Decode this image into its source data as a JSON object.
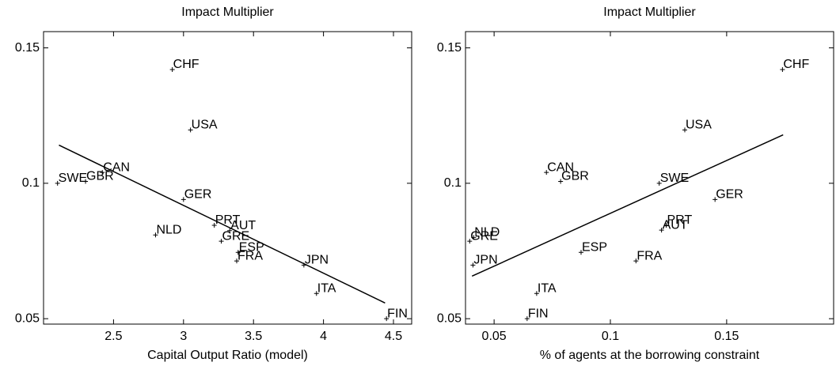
{
  "chart_data": [
    {
      "type": "scatter",
      "title": "Impact Multiplier",
      "x_label": "Capital Output Ratio (model)",
      "color": "#000000",
      "labels": [
        "CHF",
        "USA",
        "CAN",
        "GBR",
        "SWE",
        "GER",
        "PRT",
        "AUT",
        "GRE",
        "NLD",
        "ESP",
        "FRA",
        "JPN",
        "ITA",
        "FIN"
      ],
      "x": [
        2.92,
        3.05,
        2.42,
        2.3,
        2.1,
        3.0,
        3.22,
        3.33,
        3.27,
        2.8,
        3.39,
        3.38,
        3.86,
        3.95,
        4.45
      ],
      "y": [
        0.142,
        0.1197,
        0.104,
        0.1007,
        0.1,
        0.094,
        0.0845,
        0.0825,
        0.0786,
        0.0809,
        0.0745,
        0.0713,
        0.0698,
        0.0593,
        0.05
      ],
      "fit_line": {
        "x": [
          2.11,
          4.44
        ],
        "y": [
          0.1141,
          0.0558
        ]
      },
      "xlim": [
        2.0,
        4.63
      ],
      "ylim": [
        0.048,
        0.156
      ],
      "xticks": [
        2.5,
        3,
        3.5,
        4,
        4.5
      ],
      "yticks": [
        0.05,
        0.1,
        0.15
      ]
    },
    {
      "type": "scatter",
      "title": "Impact Multiplier",
      "x_label": "% of agents at the borrowing constraint",
      "color": "#000000",
      "labels": [
        "CHF",
        "USA",
        "CAN",
        "GBR",
        "SWE",
        "GER",
        "PRT",
        "AUT",
        "NLD",
        "GRE",
        "ESP",
        "FRA",
        "JPN",
        "ITA",
        "FIN"
      ],
      "x": [
        0.174,
        0.132,
        0.0725,
        0.0786,
        0.121,
        0.145,
        0.124,
        0.122,
        0.0412,
        0.0395,
        0.0874,
        0.111,
        0.0409,
        0.0683,
        0.0642
      ],
      "y": [
        0.142,
        0.1197,
        0.104,
        0.1007,
        0.1,
        0.094,
        0.0845,
        0.0827,
        0.08,
        0.0786,
        0.0745,
        0.0713,
        0.0698,
        0.0593,
        0.05
      ],
      "fit_line": {
        "x": [
          0.0405,
          0.1743
        ],
        "y": [
          0.0657,
          0.1179
        ]
      },
      "xlim": [
        0.0377,
        0.196
      ],
      "ylim": [
        0.048,
        0.156
      ],
      "xticks": [
        0.05,
        0.1,
        0.15
      ],
      "yticks": [
        0.05,
        0.1,
        0.15
      ]
    }
  ]
}
